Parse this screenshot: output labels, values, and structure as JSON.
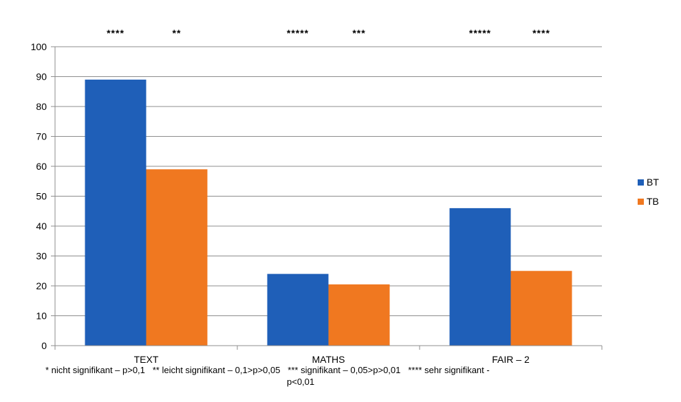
{
  "chart_data": {
    "type": "bar",
    "categories": [
      "TEXT",
      "MATHS",
      "FAIR – 2"
    ],
    "series": [
      {
        "name": "BT",
        "values": [
          89,
          24,
          46
        ],
        "color": "#1f5fb8"
      },
      {
        "name": "TB",
        "values": [
          59,
          20.5,
          25
        ],
        "color": "#f07820"
      }
    ],
    "ylim": [
      0,
      100
    ],
    "yticks": [
      0,
      10,
      20,
      30,
      40,
      50,
      60,
      70,
      80,
      90,
      100
    ],
    "grid": true,
    "legend_position": "right",
    "significance": [
      {
        "BT": "****",
        "TB": "**"
      },
      {
        "BT": "*****",
        "TB": "***"
      },
      {
        "BT": "*****",
        "TB": "****"
      }
    ]
  },
  "footnote": {
    "line1": "* nicht signifikant – p>0,1   ** leicht signifikant – 0,1>p>0,05   *** signifikant – 0,05>p>0,01   **** sehr signifikant -",
    "line2": "p<0,01"
  }
}
